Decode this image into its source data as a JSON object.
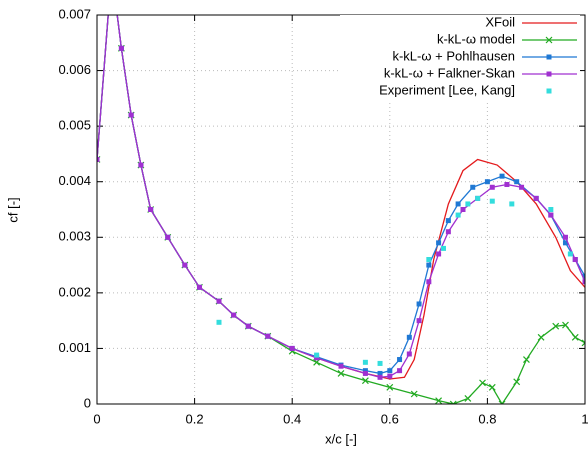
{
  "chart_data": {
    "type": "line",
    "xlabel": "x/c [-]",
    "ylabel": "cf [-]",
    "xlim": [
      0,
      1
    ],
    "xticks": [
      0,
      0.2,
      0.4,
      0.6,
      0.8,
      1
    ],
    "ylim": [
      0,
      0.007
    ],
    "yticks": [
      0,
      0.001,
      0.002,
      0.003,
      0.004,
      0.005,
      0.006,
      0.007
    ],
    "grid": true,
    "legend": "top-right",
    "series": [
      {
        "name": "XFoil",
        "color": "#e41a1c",
        "marker": "none",
        "line": true,
        "x": [
          0,
          0.03,
          0.05,
          0.07,
          0.09,
          0.11,
          0.145,
          0.18,
          0.21,
          0.25,
          0.28,
          0.31,
          0.35,
          0.4,
          0.45,
          0.5,
          0.55,
          0.6,
          0.63,
          0.65,
          0.67,
          0.69,
          0.72,
          0.75,
          0.78,
          0.82,
          0.86,
          0.9,
          0.94,
          0.97,
          1.0
        ],
        "values": [
          0.0044,
          0.0078,
          0.0064,
          0.0052,
          0.0043,
          0.0035,
          0.003,
          0.0025,
          0.0021,
          0.00185,
          0.0016,
          0.0014,
          0.00122,
          0.001,
          0.00083,
          0.00068,
          0.00055,
          0.00045,
          0.00048,
          0.0008,
          0.0016,
          0.0026,
          0.0036,
          0.0042,
          0.0044,
          0.0043,
          0.004,
          0.0036,
          0.003,
          0.0024,
          0.0021
        ]
      },
      {
        "name": "k-kL-ω model",
        "color": "#22aa22",
        "marker": "x",
        "line": true,
        "x": [
          0,
          0.03,
          0.05,
          0.07,
          0.09,
          0.11,
          0.145,
          0.18,
          0.21,
          0.25,
          0.28,
          0.31,
          0.35,
          0.4,
          0.45,
          0.5,
          0.55,
          0.6,
          0.65,
          0.7,
          0.73,
          0.76,
          0.79,
          0.81,
          0.83,
          0.86,
          0.88,
          0.91,
          0.94,
          0.96,
          0.98,
          1.0
        ],
        "values": [
          0.0044,
          0.0078,
          0.0064,
          0.0052,
          0.0043,
          0.0035,
          0.003,
          0.0025,
          0.0021,
          0.00185,
          0.0016,
          0.0014,
          0.00122,
          0.00095,
          0.00075,
          0.00055,
          0.00042,
          0.0003,
          0.00018,
          6e-05,
          0.0,
          0.0001,
          0.00038,
          0.0003,
          0.0,
          0.0004,
          0.0008,
          0.0012,
          0.0014,
          0.00142,
          0.0012,
          0.0011
        ]
      },
      {
        "name": "k-kL-ω + Pohlhausen",
        "color": "#1f78d4",
        "marker": "square",
        "line": true,
        "x": [
          0,
          0.03,
          0.05,
          0.07,
          0.09,
          0.11,
          0.145,
          0.18,
          0.21,
          0.25,
          0.28,
          0.31,
          0.35,
          0.4,
          0.45,
          0.5,
          0.55,
          0.58,
          0.6,
          0.62,
          0.64,
          0.66,
          0.68,
          0.7,
          0.72,
          0.74,
          0.77,
          0.8,
          0.83,
          0.86,
          0.9,
          0.93,
          0.96,
          0.98,
          1.0
        ],
        "values": [
          0.0044,
          0.0078,
          0.0064,
          0.0052,
          0.0043,
          0.0035,
          0.003,
          0.0025,
          0.0021,
          0.00185,
          0.0016,
          0.0014,
          0.00122,
          0.001,
          0.00085,
          0.0007,
          0.0006,
          0.00055,
          0.0006,
          0.0008,
          0.0012,
          0.0018,
          0.0025,
          0.0029,
          0.0033,
          0.0036,
          0.0039,
          0.004,
          0.0041,
          0.004,
          0.0037,
          0.0034,
          0.0029,
          0.0026,
          0.0023
        ]
      },
      {
        "name": "k-kL-ω + Falkner-Skan",
        "color": "#a030d0",
        "marker": "square",
        "line": true,
        "x": [
          0,
          0.03,
          0.05,
          0.07,
          0.09,
          0.11,
          0.145,
          0.18,
          0.21,
          0.25,
          0.28,
          0.31,
          0.35,
          0.4,
          0.45,
          0.5,
          0.55,
          0.58,
          0.6,
          0.62,
          0.64,
          0.66,
          0.68,
          0.7,
          0.72,
          0.75,
          0.78,
          0.81,
          0.84,
          0.87,
          0.9,
          0.93,
          0.96,
          0.98,
          1.0
        ],
        "values": [
          0.0044,
          0.0078,
          0.0064,
          0.0052,
          0.0043,
          0.0035,
          0.003,
          0.0025,
          0.0021,
          0.00185,
          0.0016,
          0.0014,
          0.00122,
          0.001,
          0.00083,
          0.00068,
          0.00055,
          0.00048,
          0.0005,
          0.0006,
          0.0009,
          0.0015,
          0.0022,
          0.0027,
          0.0031,
          0.0035,
          0.0037,
          0.0039,
          0.00395,
          0.0039,
          0.0037,
          0.0034,
          0.003,
          0.0026,
          0.0022
        ]
      },
      {
        "name": "Experiment [Lee, Kang]",
        "color": "#33dddd",
        "marker": "square",
        "line": false,
        "x": [
          0.25,
          0.45,
          0.55,
          0.58,
          0.68,
          0.71,
          0.74,
          0.76,
          0.78,
          0.81,
          0.85,
          0.93,
          0.97
        ],
        "values": [
          0.00147,
          0.00088,
          0.00075,
          0.00073,
          0.0026,
          0.0028,
          0.0034,
          0.0036,
          0.0037,
          0.00365,
          0.0036,
          0.0035,
          0.0027
        ]
      }
    ]
  }
}
